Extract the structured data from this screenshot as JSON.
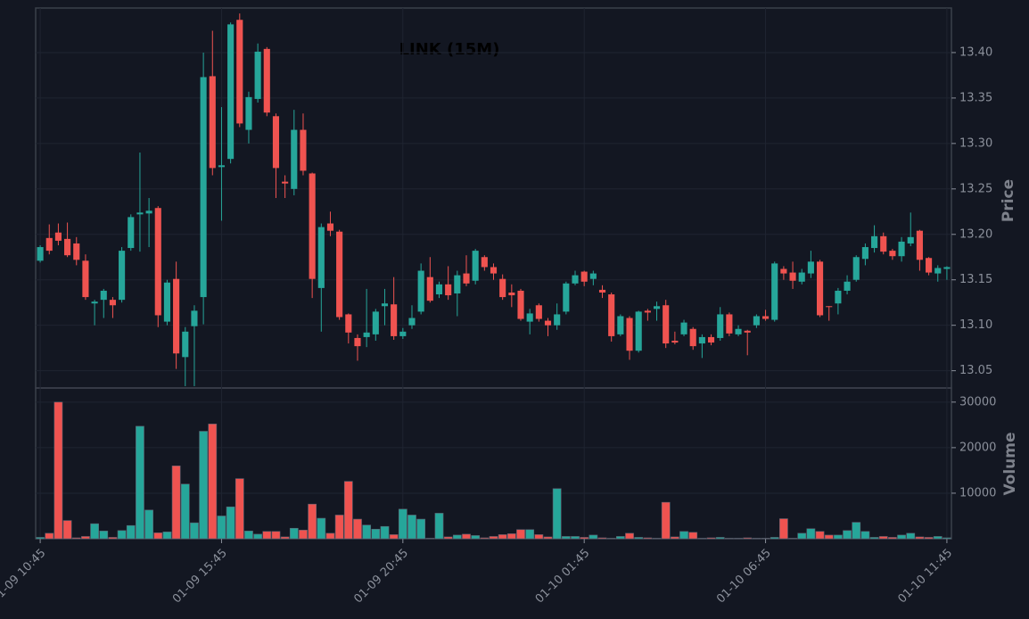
{
  "chart_data": [
    {
      "type": "candlestick",
      "title": "LINK (15M)",
      "ylabel": "Price",
      "up_color": "#26a69a",
      "down_color": "#ef5350",
      "ylim": [
        13.031,
        13.449
      ],
      "yticks": [
        13.05,
        {
          "value": 13.1,
          "label": "13.10"
        },
        13.15,
        {
          "value": 13.2,
          "label": "13.20"
        },
        13.25,
        {
          "value": 13.3,
          "label": "13.30"
        },
        13.35,
        {
          "value": 13.4,
          "label": "13.40"
        }
      ],
      "grid": true,
      "open": [
        13.171,
        13.196,
        13.202,
        13.195,
        13.19,
        13.171,
        13.124,
        13.128,
        13.128,
        13.128,
        13.185,
        13.222,
        13.223,
        13.229,
        13.104,
        13.151,
        13.065,
        13.099,
        13.131,
        13.374,
        13.274,
        13.283,
        13.436,
        13.315,
        13.349,
        13.404,
        13.33,
        13.258,
        13.25,
        13.315,
        13.267,
        13.141,
        13.212,
        13.203,
        13.112,
        13.086,
        13.087,
        13.09,
        13.121,
        13.123,
        13.088,
        13.1,
        13.115,
        13.153,
        13.134,
        13.145,
        13.135,
        13.157,
        13.149,
        13.175,
        13.164,
        13.151,
        13.136,
        13.138,
        13.104,
        13.122,
        13.105,
        13.1,
        13.115,
        13.146,
        13.159,
        13.151,
        13.139,
        13.134,
        13.09,
        13.108,
        13.072,
        13.116,
        13.118,
        13.122,
        13.083,
        13.09,
        13.096,
        13.08,
        13.087,
        13.086,
        13.112,
        13.09,
        13.094,
        13.1,
        13.11,
        13.106,
        13.162,
        13.158,
        13.148,
        13.157,
        13.17,
        13.121,
        13.124,
        13.138,
        13.15,
        13.173,
        13.185,
        13.198,
        13.182,
        13.176,
        13.19,
        13.204,
        13.174,
        13.157,
        13.162
      ],
      "high": [
        13.188,
        13.211,
        13.212,
        13.213,
        13.197,
        13.178,
        13.128,
        13.14,
        13.131,
        13.186,
        13.222,
        13.29,
        13.24,
        13.231,
        13.15,
        13.17,
        13.098,
        13.122,
        13.4,
        13.424,
        13.34,
        13.433,
        13.443,
        13.357,
        13.41,
        13.406,
        13.333,
        13.265,
        13.337,
        13.333,
        13.268,
        13.212,
        13.225,
        13.205,
        13.113,
        13.09,
        13.14,
        13.118,
        13.14,
        13.153,
        13.097,
        13.122,
        13.168,
        13.175,
        13.148,
        13.165,
        13.16,
        13.177,
        13.184,
        13.177,
        13.168,
        13.156,
        13.145,
        13.14,
        13.118,
        13.124,
        13.108,
        13.124,
        13.148,
        13.16,
        13.16,
        13.16,
        13.144,
        13.136,
        13.112,
        13.11,
        13.116,
        13.118,
        13.126,
        13.128,
        13.093,
        13.106,
        13.098,
        13.09,
        13.09,
        13.12,
        13.114,
        13.1,
        13.095,
        13.112,
        13.117,
        13.17,
        13.165,
        13.17,
        13.162,
        13.182,
        13.172,
        13.121,
        13.141,
        13.155,
        13.177,
        13.19,
        13.21,
        13.202,
        13.184,
        13.197,
        13.224,
        13.205,
        13.175,
        13.166,
        13.165
      ],
      "low": [
        13.169,
        13.178,
        13.188,
        13.175,
        13.166,
        13.128,
        13.1,
        13.108,
        13.108,
        13.125,
        13.182,
        13.181,
        13.186,
        13.098,
        13.1,
        13.052,
        13.033,
        13.033,
        13.101,
        13.265,
        13.215,
        13.278,
        13.318,
        13.3,
        13.345,
        13.33,
        13.24,
        13.24,
        13.243,
        13.265,
        13.13,
        13.093,
        13.198,
        13.106,
        13.08,
        13.061,
        13.076,
        13.083,
        13.1,
        13.084,
        13.085,
        13.096,
        13.112,
        13.125,
        13.13,
        13.128,
        13.11,
        13.143,
        13.145,
        13.16,
        13.15,
        13.128,
        13.12,
        13.105,
        13.09,
        13.104,
        13.088,
        13.095,
        13.112,
        13.144,
        13.143,
        13.144,
        13.13,
        13.082,
        13.088,
        13.062,
        13.07,
        13.105,
        13.105,
        13.075,
        13.079,
        13.088,
        13.073,
        13.064,
        13.078,
        13.083,
        13.088,
        13.088,
        13.067,
        13.097,
        13.105,
        13.104,
        13.15,
        13.14,
        13.145,
        13.152,
        13.109,
        13.105,
        13.112,
        13.134,
        13.148,
        13.166,
        13.18,
        13.178,
        13.172,
        13.17,
        13.187,
        13.16,
        13.155,
        13.148,
        13.15
      ],
      "close": [
        13.186,
        13.182,
        13.193,
        13.177,
        13.172,
        13.131,
        13.126,
        13.138,
        13.122,
        13.182,
        13.219,
        13.224,
        13.226,
        13.111,
        13.147,
        13.069,
        13.093,
        13.116,
        13.373,
        13.273,
        13.276,
        13.431,
        13.322,
        13.351,
        13.401,
        13.334,
        13.273,
        13.256,
        13.315,
        13.27,
        13.151,
        13.208,
        13.204,
        13.109,
        13.092,
        13.077,
        13.092,
        13.115,
        13.124,
        13.088,
        13.093,
        13.108,
        13.16,
        13.127,
        13.145,
        13.133,
        13.155,
        13.146,
        13.182,
        13.164,
        13.157,
        13.131,
        13.133,
        13.107,
        13.113,
        13.107,
        13.1,
        13.112,
        13.146,
        13.155,
        13.148,
        13.157,
        13.136,
        13.088,
        13.11,
        13.072,
        13.115,
        13.114,
        13.121,
        13.08,
        13.081,
        13.103,
        13.077,
        13.087,
        13.081,
        13.112,
        13.091,
        13.096,
        13.092,
        13.11,
        13.107,
        13.168,
        13.157,
        13.149,
        13.158,
        13.17,
        13.111,
        13.12,
        13.138,
        13.148,
        13.175,
        13.186,
        13.198,
        13.181,
        13.176,
        13.192,
        13.197,
        13.172,
        13.158,
        13.163,
        13.164
      ]
    },
    {
      "type": "bar",
      "ylabel": "Volume",
      "ylim": [
        0,
        33100
      ],
      "yticks": [
        10000,
        20000,
        30000
      ],
      "grid": true,
      "xlim": [
        -0.5,
        100.5
      ],
      "xticks": [
        {
          "value": 0,
          "label": "01-09 10:45"
        },
        {
          "value": 20,
          "label": "01-09 15:45"
        },
        {
          "value": 40,
          "label": "01-09 20:45"
        },
        {
          "value": 60,
          "label": "01-10 01:45"
        },
        {
          "value": 80,
          "label": "01-10 06:45"
        },
        {
          "value": 100,
          "label": "01-10 11:45"
        }
      ],
      "values": [
        300,
        1200,
        30000,
        4000,
        200,
        500,
        3300,
        1700,
        300,
        1800,
        2900,
        24700,
        6300,
        1300,
        1500,
        16000,
        12000,
        3500,
        23600,
        25200,
        5000,
        7000,
        13200,
        1700,
        1000,
        1600,
        1600,
        400,
        2300,
        1900,
        7600,
        4500,
        1200,
        5200,
        12600,
        4300,
        3000,
        2100,
        2700,
        900,
        6500,
        5200,
        4300,
        100,
        5600,
        400,
        800,
        1000,
        700,
        200,
        500,
        900,
        1100,
        2000,
        2000,
        900,
        400,
        11000,
        500,
        500,
        300,
        800,
        200,
        100,
        500,
        1200,
        300,
        200,
        100,
        8000,
        400,
        1600,
        1400,
        100,
        200,
        300,
        100,
        100,
        200,
        100,
        100,
        300,
        4400,
        100,
        1200,
        2200,
        1600,
        800,
        800,
        1800,
        3600,
        1600,
        300,
        500,
        300,
        800,
        1200,
        400,
        300,
        500,
        200
      ]
    }
  ]
}
